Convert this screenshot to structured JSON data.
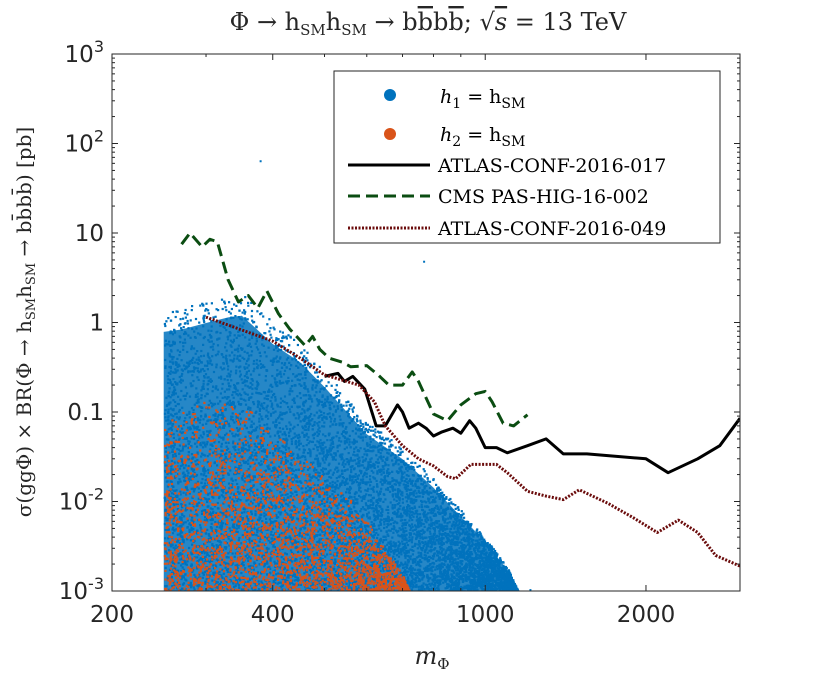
{
  "chart_data": {
    "type": "scatter",
    "title": "Φ → h_SM h_SM → b b̄ b b̄; √s = 13 TeV",
    "title_parts": {
      "lhs": "Φ → h",
      "sm": "SM",
      "arrow2": " → b",
      "bbar": "b",
      "b": "b",
      "bbar2": "b",
      "sqrt": "√",
      "s": "s",
      "energy": "= 13 TeV",
      "semicolon": ";"
    },
    "xlabel": "m_Φ",
    "xlabel_parts": {
      "m": "m",
      "sub": "Φ"
    },
    "ylabel": "σ(ggΦ) × BR(Φ → h_SM h_SM → b b̄ b b̄) [pb]",
    "ylabel_text": "σ(ggΦ) × BR(Φ → h",
    "ylabel_sub": "SM",
    "ylabel_tail": " → bb̄bb̄) [pb]",
    "xscale": "log",
    "yscale": "log",
    "xlim": [
      200,
      3000
    ],
    "ylim": [
      0.001,
      1000
    ],
    "x_ticks": [
      200,
      400,
      1000,
      2000
    ],
    "x_tick_labels": [
      "200",
      "400",
      "1000",
      "2000"
    ],
    "y_ticks": [
      0.001,
      0.01,
      0.1,
      1,
      10,
      100,
      1000
    ],
    "y_tick_labels": [
      {
        "base": "10",
        "exp": "-3"
      },
      {
        "base": "10",
        "exp": "-2"
      },
      {
        "text": "0.1"
      },
      {
        "text": "1"
      },
      {
        "text": "10"
      },
      {
        "base": "10",
        "exp": "2"
      },
      {
        "base": "10",
        "exp": "3"
      }
    ],
    "grid": false,
    "legend_placement": "top-right",
    "series": [
      {
        "name": "h1 = hSM",
        "label_main": "h",
        "label_sub": "1",
        "label_eq": " = h",
        "label_sub2": "SM",
        "kind": "scatter",
        "color": "#0072BD",
        "x_range": [
          250,
          1150
        ],
        "upper_envelope": [
          [
            250,
            1.4
          ],
          [
            270,
            1.5
          ],
          [
            300,
            1.8
          ],
          [
            330,
            2.1
          ],
          [
            350,
            2.2
          ],
          [
            370,
            1.6
          ],
          [
            400,
            1.0
          ],
          [
            450,
            0.6
          ],
          [
            500,
            0.3
          ],
          [
            550,
            0.15
          ],
          [
            600,
            0.08
          ],
          [
            700,
            0.04
          ],
          [
            800,
            0.018
          ],
          [
            900,
            0.008
          ],
          [
            1000,
            0.004
          ],
          [
            1100,
            0.0018
          ],
          [
            1150,
            0.001
          ]
        ],
        "lower_edge": 0.001,
        "outliers": [
          [
            378,
            65
          ],
          [
            765,
            4.9
          ],
          [
            1210,
            0.00105
          ]
        ]
      },
      {
        "name": "h2 = hSM",
        "label_main": "h",
        "label_sub": "2",
        "label_eq": " = h",
        "label_sub2": "SM",
        "kind": "scatter",
        "color": "#D95319",
        "x_range": [
          250,
          720
        ],
        "upper_envelope": [
          [
            250,
            0.1
          ],
          [
            300,
            0.15
          ],
          [
            350,
            0.12
          ],
          [
            400,
            0.08
          ],
          [
            450,
            0.04
          ],
          [
            500,
            0.018
          ],
          [
            550,
            0.012
          ],
          [
            600,
            0.006
          ],
          [
            650,
            0.003
          ],
          [
            700,
            0.0015
          ],
          [
            720,
            0.001
          ]
        ],
        "lower_edge": 0.001
      },
      {
        "name": "ATLAS-CONF-2016-017",
        "kind": "line",
        "style": "solid",
        "color": "#000000",
        "points": [
          [
            500,
            0.25
          ],
          [
            530,
            0.27
          ],
          [
            545,
            0.22
          ],
          [
            565,
            0.25
          ],
          [
            595,
            0.18
          ],
          [
            625,
            0.07
          ],
          [
            650,
            0.07
          ],
          [
            685,
            0.12
          ],
          [
            700,
            0.1
          ],
          [
            720,
            0.066
          ],
          [
            750,
            0.075
          ],
          [
            775,
            0.066
          ],
          [
            800,
            0.054
          ],
          [
            830,
            0.06
          ],
          [
            870,
            0.066
          ],
          [
            900,
            0.058
          ],
          [
            935,
            0.08
          ],
          [
            960,
            0.066
          ],
          [
            1000,
            0.04
          ],
          [
            1050,
            0.04
          ],
          [
            1100,
            0.035
          ],
          [
            1200,
            0.042
          ],
          [
            1300,
            0.05
          ],
          [
            1400,
            0.034
          ],
          [
            1550,
            0.034
          ],
          [
            2000,
            0.03
          ],
          [
            2200,
            0.021
          ],
          [
            2500,
            0.03
          ],
          [
            2750,
            0.042
          ],
          [
            3000,
            0.085
          ]
        ]
      },
      {
        "name": "CMS PAS-HIG-16-002",
        "kind": "line",
        "style": "dashed",
        "color": "#0B4D12",
        "points": [
          [
            270,
            7.5
          ],
          [
            280,
            10
          ],
          [
            295,
            7
          ],
          [
            305,
            8.5
          ],
          [
            315,
            8
          ],
          [
            330,
            3
          ],
          [
            345,
            1.7
          ],
          [
            360,
            2
          ],
          [
            375,
            1.45
          ],
          [
            390,
            2.25
          ],
          [
            410,
            1.25
          ],
          [
            430,
            0.85
          ],
          [
            460,
            0.55
          ],
          [
            475,
            0.7
          ],
          [
            490,
            0.5
          ],
          [
            510,
            0.4
          ],
          [
            540,
            0.36
          ],
          [
            560,
            0.32
          ],
          [
            600,
            0.33
          ],
          [
            630,
            0.26
          ],
          [
            660,
            0.2
          ],
          [
            700,
            0.2
          ],
          [
            730,
            0.28
          ],
          [
            750,
            0.22
          ],
          [
            800,
            0.095
          ],
          [
            850,
            0.08
          ],
          [
            900,
            0.12
          ],
          [
            960,
            0.16
          ],
          [
            1000,
            0.17
          ],
          [
            1030,
            0.13
          ],
          [
            1080,
            0.075
          ],
          [
            1130,
            0.07
          ],
          [
            1200,
            0.093
          ]
        ]
      },
      {
        "name": "ATLAS-CONF-2016-049",
        "kind": "line",
        "style": "dotted",
        "color": "#6B0C0C",
        "points": [
          [
            300,
            1.15
          ],
          [
            400,
            0.62
          ],
          [
            450,
            0.4
          ],
          [
            500,
            0.26
          ],
          [
            550,
            0.22
          ],
          [
            580,
            0.2
          ],
          [
            620,
            0.13
          ],
          [
            650,
            0.07
          ],
          [
            700,
            0.042
          ],
          [
            750,
            0.03
          ],
          [
            800,
            0.025
          ],
          [
            850,
            0.019
          ],
          [
            880,
            0.018
          ],
          [
            940,
            0.026
          ],
          [
            1000,
            0.026
          ],
          [
            1050,
            0.026
          ],
          [
            1100,
            0.021
          ],
          [
            1200,
            0.013
          ],
          [
            1300,
            0.0115
          ],
          [
            1400,
            0.0105
          ],
          [
            1500,
            0.0135
          ],
          [
            1700,
            0.0095
          ],
          [
            1900,
            0.0065
          ],
          [
            2100,
            0.0045
          ],
          [
            2300,
            0.0062
          ],
          [
            2500,
            0.0045
          ],
          [
            2700,
            0.0025
          ],
          [
            3000,
            0.0019
          ]
        ]
      }
    ]
  }
}
